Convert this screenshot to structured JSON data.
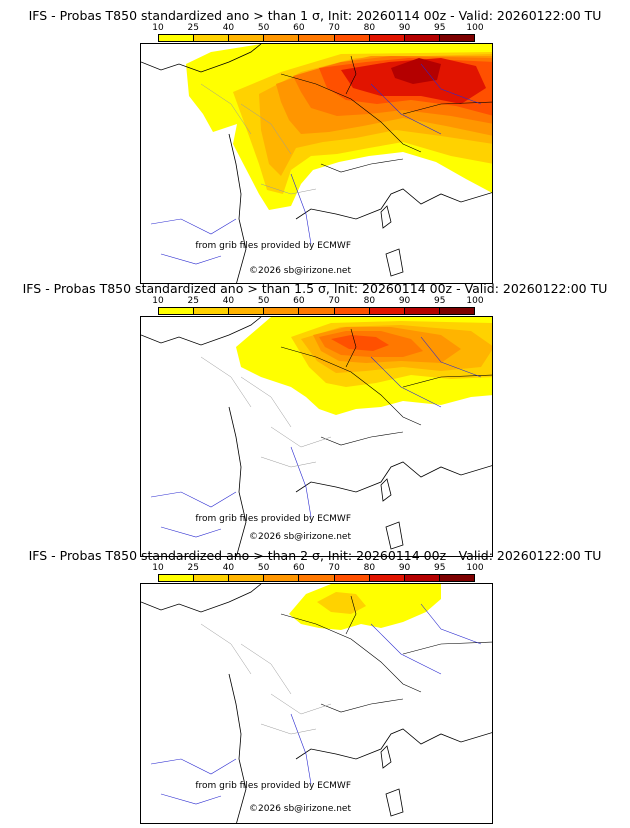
{
  "scale": {
    "labels": [
      "10",
      "25",
      "40",
      "50",
      "60",
      "70",
      "80",
      "90",
      "95",
      "100"
    ],
    "colors": [
      "#ffff00",
      "#ffd200",
      "#ffb400",
      "#ff9600",
      "#ff7800",
      "#ff5000",
      "#e11400",
      "#b40000",
      "#7d0000"
    ]
  },
  "panels": [
    {
      "title": "IFS - Probas T850  standardized ano > than 1 σ, Init: 20260114 00z - Valid: 20260122:00 TU",
      "credit": "from grib files provided by ECMWF",
      "copyright": "©2026 sb@irizone.net"
    },
    {
      "title": "IFS - Probas T850  standardized ano > than 1.5 σ, Init: 20260114 00z - Valid: 20260122:00 TU",
      "credit": "from grib files provided by ECMWF",
      "copyright": "©2026 sb@irizone.net"
    },
    {
      "title": "IFS - Probas T850  standardized ano > than 2 σ, Init: 20260114 00z - Valid: 20260122:00 TU",
      "credit": "from grib files provided by ECMWF",
      "copyright": "©2026 sb@irizone.net"
    }
  ]
}
